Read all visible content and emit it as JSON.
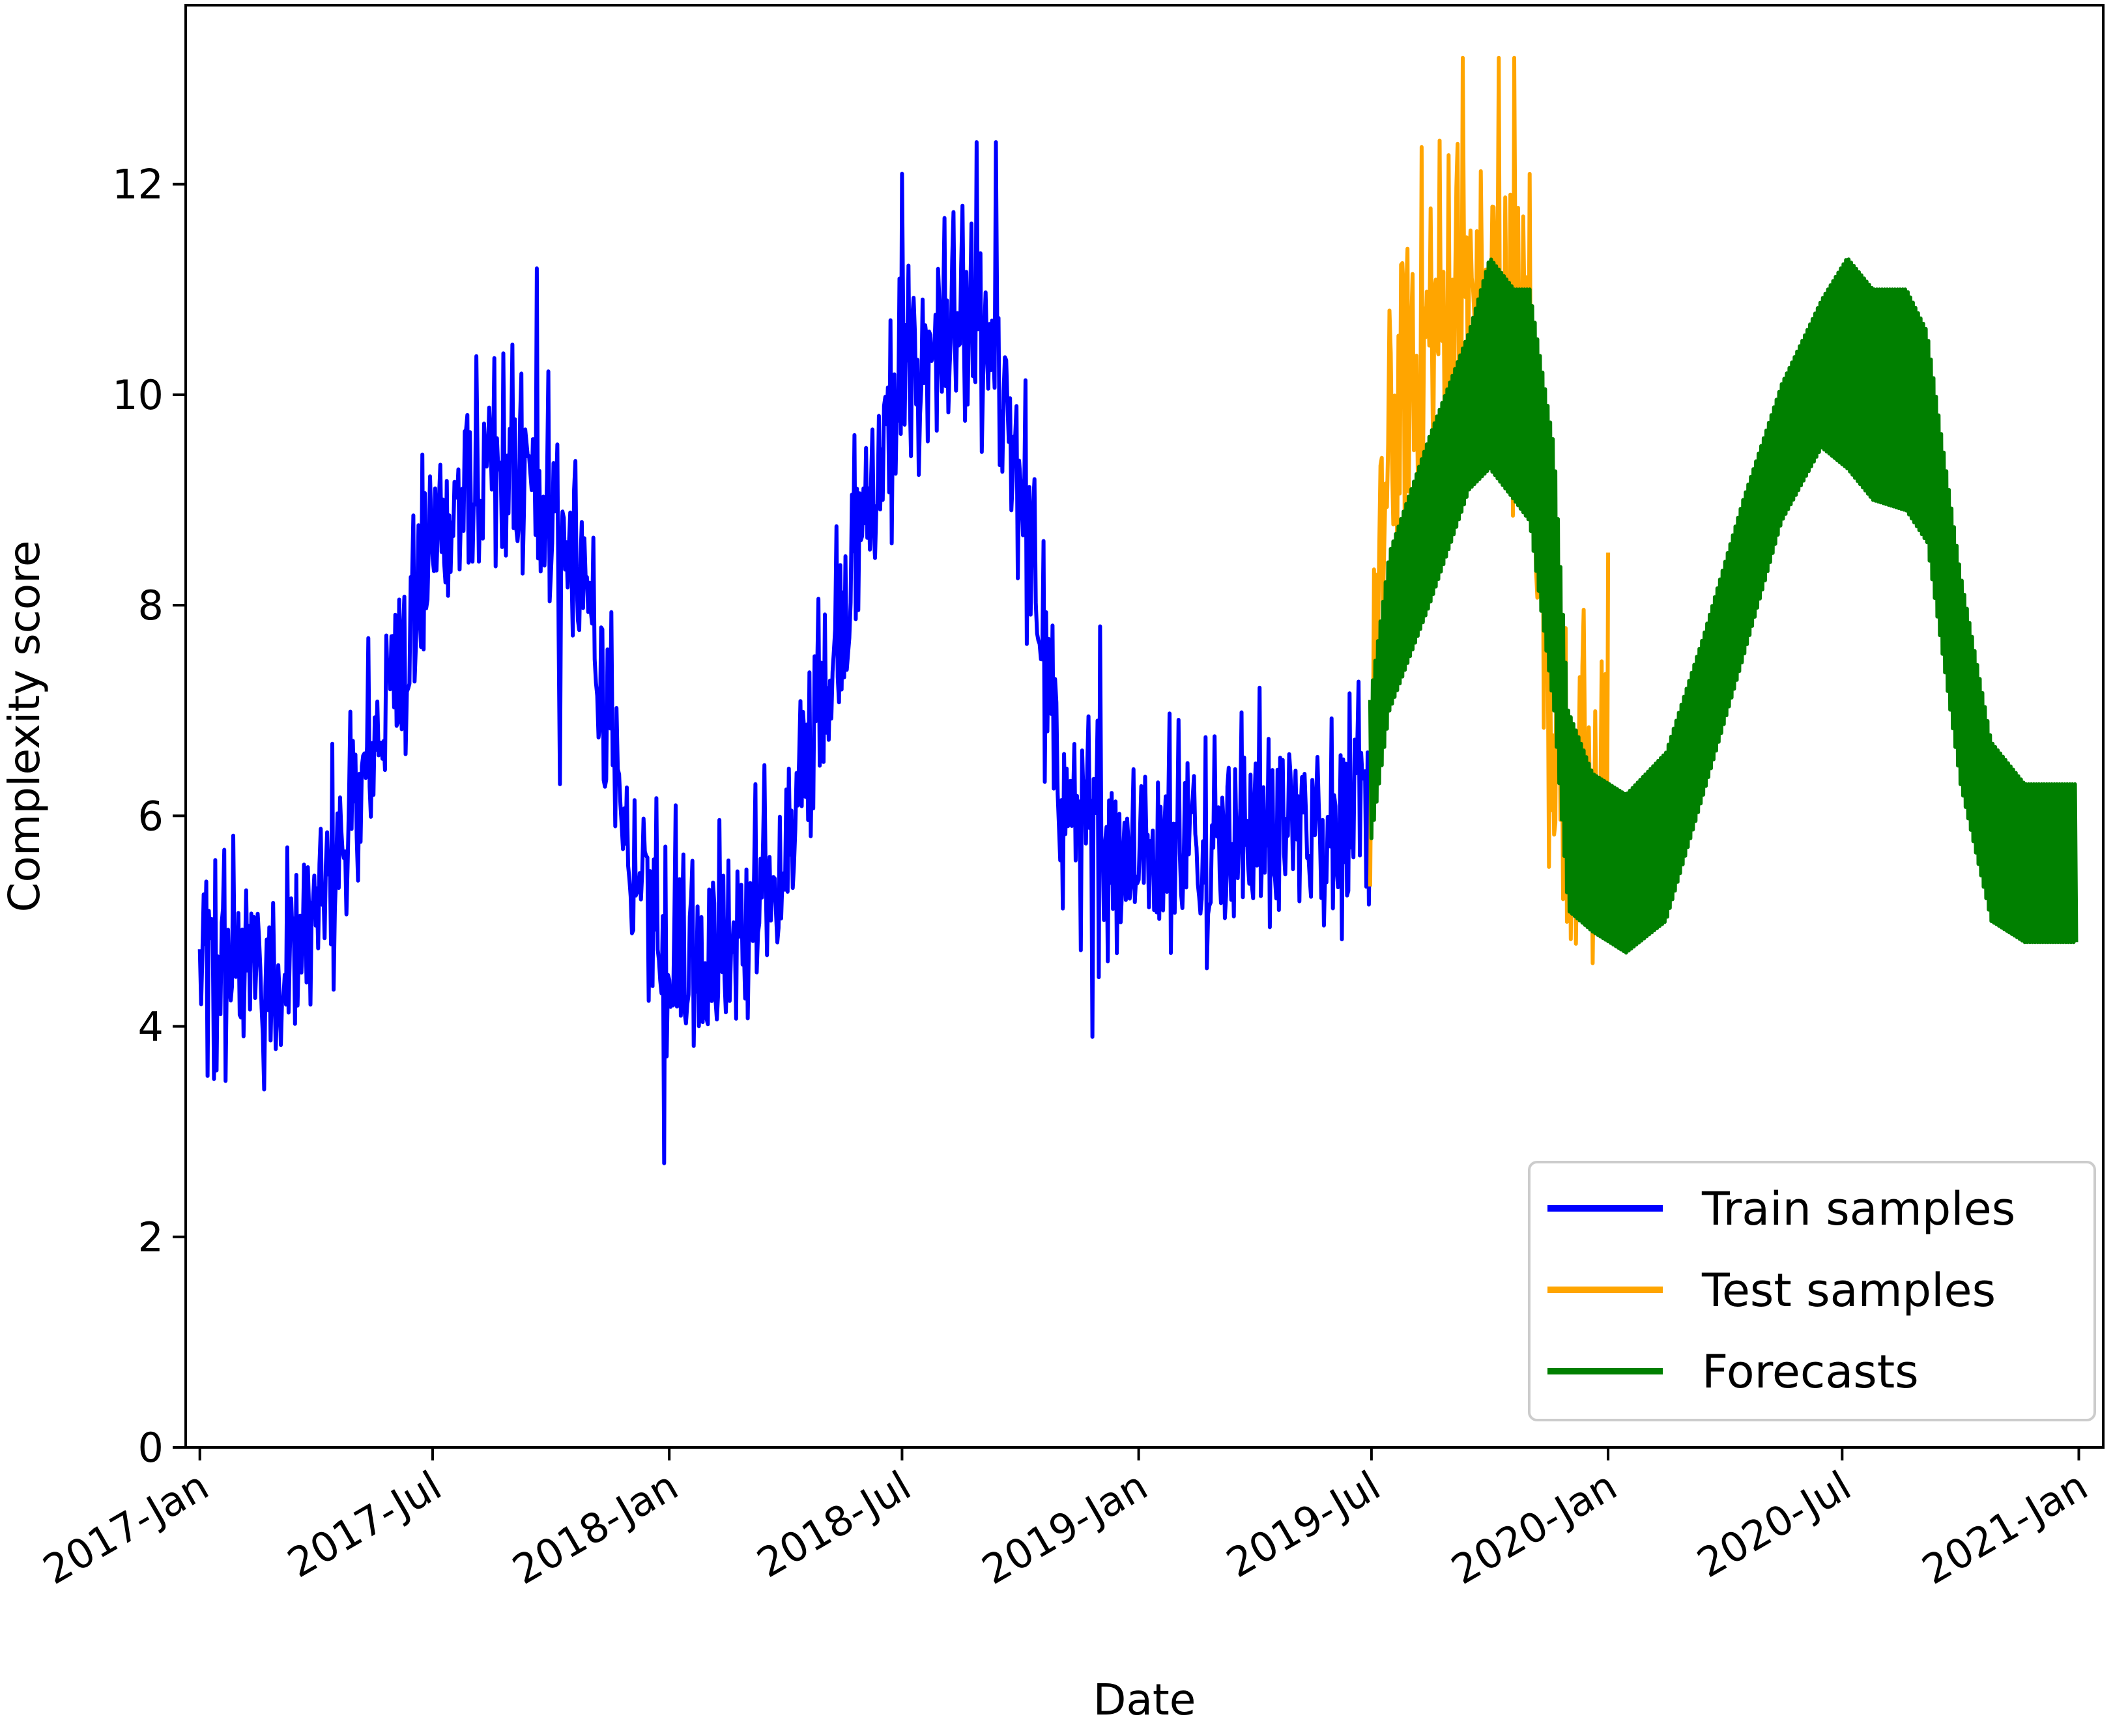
{
  "chart_data": {
    "type": "line",
    "title": "",
    "xlabel": "Date",
    "ylabel": "Complexity score",
    "x_range": [
      "2016-12-21",
      "2021-01-20"
    ],
    "ylim": [
      0,
      13.7
    ],
    "x_ticks": [
      {
        "date": "2017-01-01",
        "label": "2017-Jan"
      },
      {
        "date": "2017-07-01",
        "label": "2017-Jul"
      },
      {
        "date": "2018-01-01",
        "label": "2018-Jan"
      },
      {
        "date": "2018-07-01",
        "label": "2018-Jul"
      },
      {
        "date": "2019-01-01",
        "label": "2019-Jan"
      },
      {
        "date": "2019-07-01",
        "label": "2019-Jul"
      },
      {
        "date": "2020-01-01",
        "label": "2020-Jan"
      },
      {
        "date": "2020-07-01",
        "label": "2020-Jul"
      },
      {
        "date": "2021-01-01",
        "label": "2021-Jan"
      }
    ],
    "y_ticks": [
      0,
      2,
      4,
      6,
      8,
      10,
      12
    ],
    "grid": false,
    "legend_position": "lower right",
    "series": [
      {
        "name": "Train samples",
        "color": "#0000ff",
        "start": "2017-01-01",
        "end": "2019-06-30",
        "center_points": [
          [
            "2017-01-01",
            4.5
          ],
          [
            "2017-02-01",
            4.6
          ],
          [
            "2017-03-01",
            4.5
          ],
          [
            "2017-04-01",
            5.0
          ],
          [
            "2017-05-01",
            6.0
          ],
          [
            "2017-06-01",
            7.3
          ],
          [
            "2017-07-01",
            8.6
          ],
          [
            "2017-08-01",
            9.1
          ],
          [
            "2017-09-01",
            9.2
          ],
          [
            "2017-10-01",
            9.0
          ],
          [
            "2017-11-01",
            7.9
          ],
          [
            "2017-12-01",
            5.5
          ],
          [
            "2018-01-01",
            4.8
          ],
          [
            "2018-02-01",
            4.7
          ],
          [
            "2018-03-01",
            4.8
          ],
          [
            "2018-04-01",
            5.6
          ],
          [
            "2018-05-01",
            7.2
          ],
          [
            "2018-06-01",
            8.8
          ],
          [
            "2018-07-01",
            10.0
          ],
          [
            "2018-08-01",
            10.6
          ],
          [
            "2018-09-01",
            10.4
          ],
          [
            "2018-10-01",
            9.3
          ],
          [
            "2018-11-01",
            6.2
          ],
          [
            "2018-12-01",
            5.7
          ],
          [
            "2019-01-01",
            5.7
          ],
          [
            "2019-02-01",
            5.8
          ],
          [
            "2019-03-01",
            5.8
          ],
          [
            "2019-04-01",
            5.9
          ],
          [
            "2019-05-01",
            5.9
          ],
          [
            "2019-06-30",
            6.0
          ]
        ],
        "noise_amplitude": 0.75,
        "spikes": [
          [
            "2017-01-12",
            3.5
          ],
          [
            "2017-02-20",
            3.4
          ],
          [
            "2017-09-20",
            11.2
          ],
          [
            "2017-10-08",
            6.3
          ],
          [
            "2017-11-20",
            5.9
          ],
          [
            "2017-12-28",
            2.7
          ],
          [
            "2018-01-06",
            6.1
          ],
          [
            "2018-07-01",
            12.1
          ],
          [
            "2018-08-28",
            12.4
          ],
          [
            "2018-09-12",
            12.4
          ],
          [
            "2018-11-26",
            3.9
          ],
          [
            "2018-12-02",
            7.8
          ]
        ]
      },
      {
        "name": "Test samples",
        "color": "#ffa500",
        "start": "2019-06-30",
        "end": "2020-01-01",
        "center_points": [
          [
            "2019-06-30",
            6.5
          ],
          [
            "2019-07-15",
            9.5
          ],
          [
            "2019-08-01",
            10.3
          ],
          [
            "2019-09-01",
            10.8
          ],
          [
            "2019-10-01",
            10.9
          ],
          [
            "2019-11-01",
            10.5
          ],
          [
            "2019-11-15",
            7.5
          ],
          [
            "2019-12-01",
            6.0
          ],
          [
            "2020-01-01",
            6.3
          ]
        ],
        "noise_amplitude": 1.4,
        "spikes": [
          [
            "2019-09-10",
            13.2
          ],
          [
            "2019-10-08",
            13.2
          ],
          [
            "2019-10-20",
            13.2
          ],
          [
            "2019-12-20",
            4.6
          ],
          [
            "2020-01-01",
            8.5
          ]
        ]
      },
      {
        "name": "Forecasts",
        "color": "#008000",
        "start": "2019-06-30",
        "end": "2020-12-30",
        "upper_envelope": [
          [
            "2019-06-30",
            7.1
          ],
          [
            "2019-07-15",
            8.5
          ],
          [
            "2019-08-15",
            9.6
          ],
          [
            "2019-09-15",
            10.6
          ],
          [
            "2019-10-01",
            11.3
          ],
          [
            "2019-10-20",
            11.0
          ],
          [
            "2019-11-01",
            11.0
          ],
          [
            "2019-11-20",
            9.5
          ],
          [
            "2019-12-01",
            7.0
          ],
          [
            "2019-12-20",
            6.4
          ],
          [
            "2020-01-15",
            6.2
          ],
          [
            "2020-02-15",
            6.6
          ],
          [
            "2020-03-15",
            7.7
          ],
          [
            "2020-04-15",
            9.0
          ],
          [
            "2020-05-15",
            10.1
          ],
          [
            "2020-06-15",
            10.9
          ],
          [
            "2020-07-05",
            11.3
          ],
          [
            "2020-07-25",
            11.0
          ],
          [
            "2020-08-20",
            11.0
          ],
          [
            "2020-09-05",
            10.6
          ],
          [
            "2020-10-01",
            8.3
          ],
          [
            "2020-10-25",
            6.7
          ],
          [
            "2020-11-20",
            6.3
          ],
          [
            "2020-12-30",
            6.3
          ]
        ],
        "lower_envelope": [
          [
            "2019-06-30",
            5.7
          ],
          [
            "2019-07-15",
            7.0
          ],
          [
            "2019-08-15",
            8.0
          ],
          [
            "2019-09-15",
            9.1
          ],
          [
            "2019-10-01",
            9.3
          ],
          [
            "2019-10-20",
            9.0
          ],
          [
            "2019-11-01",
            8.8
          ],
          [
            "2019-11-20",
            7.0
          ],
          [
            "2019-12-01",
            5.1
          ],
          [
            "2019-12-20",
            4.9
          ],
          [
            "2020-01-15",
            4.7
          ],
          [
            "2020-02-15",
            5.0
          ],
          [
            "2020-03-15",
            6.2
          ],
          [
            "2020-04-15",
            7.5
          ],
          [
            "2020-05-15",
            8.8
          ],
          [
            "2020-06-15",
            9.5
          ],
          [
            "2020-07-05",
            9.3
          ],
          [
            "2020-07-25",
            9.0
          ],
          [
            "2020-08-20",
            8.9
          ],
          [
            "2020-09-05",
            8.6
          ],
          [
            "2020-10-01",
            6.3
          ],
          [
            "2020-10-25",
            5.0
          ],
          [
            "2020-11-20",
            4.8
          ],
          [
            "2020-12-30",
            4.8
          ]
        ]
      }
    ]
  }
}
